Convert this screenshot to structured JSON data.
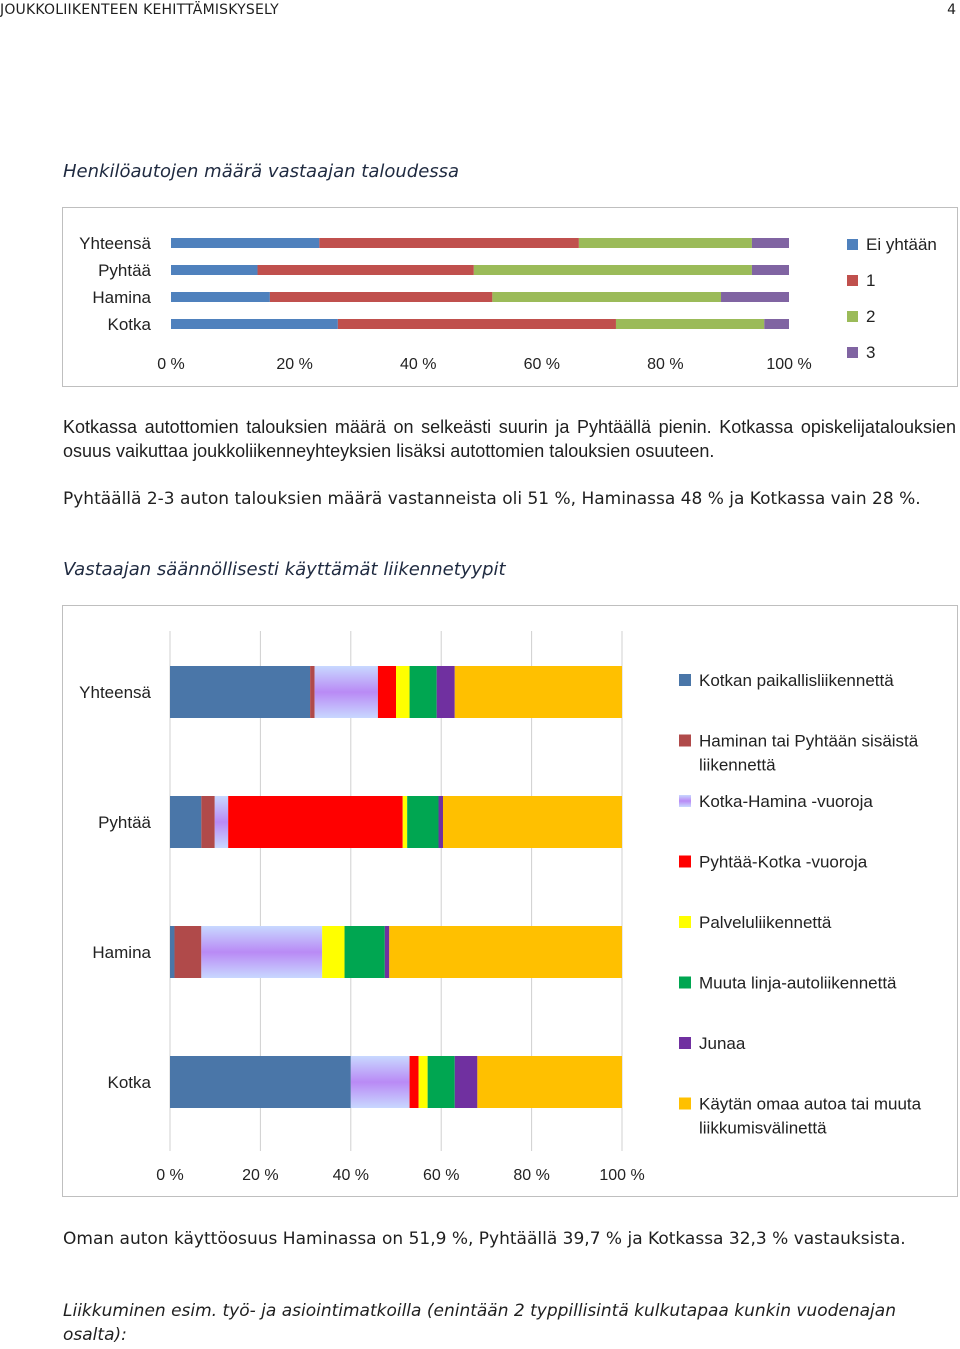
{
  "header": {
    "title": "JOUKKOLIIKENTEEN KEHITTÄMISKYSELY",
    "page_number": "4"
  },
  "chart1_caption": "Henkilöautojen määrä vastaajan taloudessa",
  "para1": "Kotkassa autottomien talouksien määrä on selkeästi suurin ja Pyhtäällä pienin. Kotkassa opiskelijatalouksien osuus vaikuttaa joukkoliikenneyhteyksien lisäksi autottomien talouksien osuuteen.",
  "para2": "Pyhtäällä 2-3 auton talouksien määrä vastanneista oli 51 %, Haminassa 48 % ja Kotkassa vain 28 %.",
  "chart2_caption": "Vastaajan säännöllisesti käyttämät liikennetyypit",
  "para3": "Oman auton käyttöosuus Haminassa on 51,9 %, Pyhtäällä 39,7 % ja Kotkassa 32,3 % vastauksista.",
  "para4": "Liikkuminen esim. työ- ja asiointimatkoilla (enintään 2 typpillisintä kulkutapaa kunkin vuodenajan osalta):",
  "chart_data": [
    {
      "type": "bar",
      "orientation": "horizontal",
      "stacked": "percent",
      "categories": [
        "Yhteensä",
        "Pyhtää",
        "Hamina",
        "Kotka"
      ],
      "series": [
        {
          "name": "Ei yhtään",
          "color": "#4f81bd",
          "values": [
            24,
            14,
            16,
            27
          ]
        },
        {
          "name": "1",
          "color": "#c0504d",
          "values": [
            42,
            35,
            36,
            45
          ]
        },
        {
          "name": "2",
          "color": "#9bbb59",
          "values": [
            28,
            45,
            37,
            24
          ]
        },
        {
          "name": "3",
          "color": "#8064a2",
          "values": [
            6,
            6,
            11,
            4
          ]
        }
      ],
      "x_ticks": [
        "0 %",
        "20 %",
        "40 %",
        "60 %",
        "80 %",
        "100 %"
      ],
      "xlim": [
        0,
        100
      ],
      "legend": "right",
      "grid": false
    },
    {
      "type": "bar",
      "orientation": "horizontal",
      "stacked": "percent",
      "categories": [
        "Yhteensä",
        "Pyhtää",
        "Hamina",
        "Kotka"
      ],
      "series": [
        {
          "name": "Kotkan paikallisliikennettä",
          "color": "#4a76a8",
          "values": [
            31,
            7,
            1,
            40
          ]
        },
        {
          "name": "Haminan tai Pyhtään sisäistä liikennettä",
          "color": "#b04a4a",
          "values": [
            1,
            3,
            6,
            0
          ]
        },
        {
          "name": "Kotka-Hamina -vuoroja",
          "color": "#b98af5",
          "values": [
            14,
            3,
            27,
            13
          ]
        },
        {
          "name": "Pyhtää-Kotka -vuoroja",
          "color": "#ff0000",
          "values": [
            4,
            39,
            0,
            2
          ]
        },
        {
          "name": "Palveluliikennettä",
          "color": "#ffff00",
          "values": [
            3,
            1,
            5,
            2
          ]
        },
        {
          "name": "Muuta linja-autoliikennettä",
          "color": "#00a651",
          "values": [
            6,
            7,
            9,
            6
          ]
        },
        {
          "name": "Junaa",
          "color": "#7030a0",
          "values": [
            4,
            1,
            1,
            5
          ]
        },
        {
          "name": "Käytän omaa autoa tai muuta liikkumisvälinettä",
          "color": "#ffc000",
          "values": [
            37,
            40,
            52,
            32
          ]
        }
      ],
      "x_ticks": [
        "0 %",
        "20 %",
        "40 %",
        "60 %",
        "80 %",
        "100 %"
      ],
      "xlim": [
        0,
        100
      ],
      "legend": "right",
      "grid": true
    }
  ]
}
